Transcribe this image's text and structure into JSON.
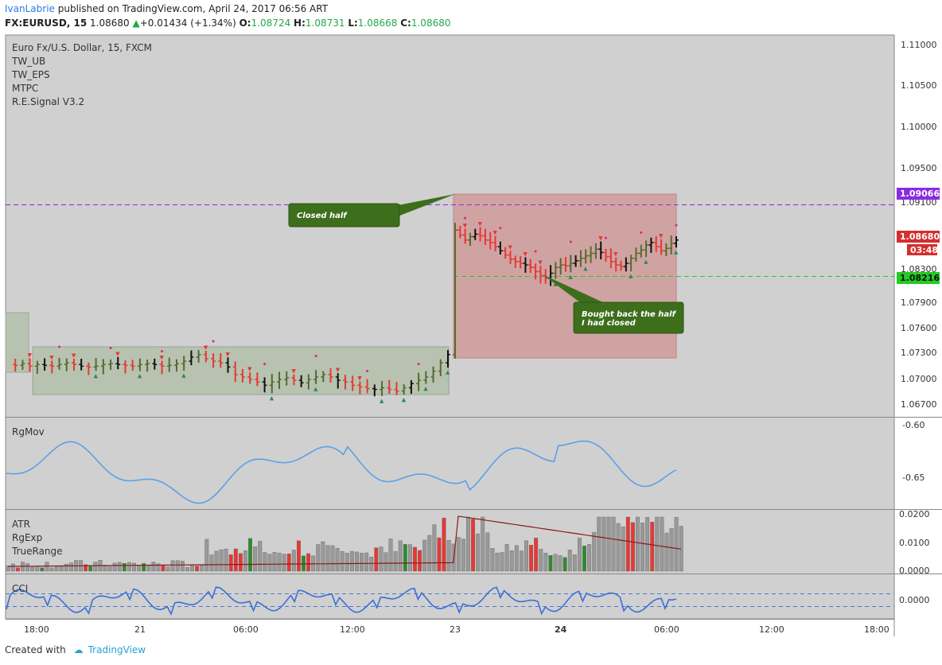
{
  "header": {
    "author": "IvanLabrie",
    "published": "published on TradingView.com, April 24, 2017 06:56 ART",
    "symbol": "FX:EURUSD, 15",
    "last": "1.08680",
    "change": "+0.01434 (+1.34%)",
    "o_label": "O:",
    "o": "1.08724",
    "h_label": "H:",
    "h": "1.08731",
    "l_label": "L:",
    "l": "1.08668",
    "c_label": "C:",
    "c": "1.08680"
  },
  "legend": {
    "instrument": "Euro Fx/U.S. Dollar, 15, FXCM",
    "studies": [
      "TW_UB",
      "TW_EPS",
      "MTPC",
      "R.E.Signal V3.2"
    ]
  },
  "annotations": {
    "closed_half": "Closed half",
    "bought_back_1": "Bought back the half",
    "bought_back_2": "I had closed"
  },
  "price_axis": {
    "ticks": [
      "1.11000",
      "1.10500",
      "1.10000",
      "1.09500",
      "1.09100",
      "1.08300",
      "1.07900",
      "1.07600",
      "1.07300",
      "1.07000",
      "1.06700"
    ],
    "purple_label": "1.09066",
    "red_label": "1.08680",
    "red_timer": "03:48",
    "green_label": "1.08216"
  },
  "panes": {
    "rgmov": "RgMov",
    "rgmov_ticks": [
      "-0.60",
      "-0.65"
    ],
    "atr": [
      "ATR",
      "RgExp",
      "TrueRange"
    ],
    "atr_ticks": [
      "0.0200",
      "0.0100",
      "0.0000"
    ],
    "cci": "CCI",
    "cci_ticks": [
      "0.0000"
    ]
  },
  "time_axis": [
    "18:00",
    "21",
    "06:00",
    "12:00",
    "23",
    "24",
    "06:00",
    "12:00",
    "18:00"
  ],
  "colors": {
    "bull": "#556b2f",
    "bear": "#e53935",
    "rgmov_line": "#5aa1e8",
    "cci_line": "#3a6fd8",
    "purple": "#8a2be2",
    "green_line": "#22cc22",
    "annot_fill": "#3d6e1c"
  },
  "chart_data": {
    "type": "candlestick",
    "symbol": "EURUSD",
    "interval": "15",
    "price_range": [
      1.0655,
      1.1115
    ],
    "last_price": 1.0868,
    "levels": [
      1.09066,
      1.08216
    ],
    "price_path": [
      1.0718,
      1.0717,
      1.0719,
      1.0716,
      1.0718,
      1.0717,
      1.0716,
      1.0718,
      1.072,
      1.0718,
      1.0716,
      1.0715,
      1.0716,
      1.0718,
      1.0719,
      1.0718,
      1.0717,
      1.0716,
      1.0718,
      1.0719,
      1.0718,
      1.0716,
      1.0717,
      1.0719,
      1.0722,
      1.0727,
      1.073,
      1.0725,
      1.0722,
      1.072,
      1.0715,
      1.0706,
      1.0703,
      1.07,
      1.0697,
      1.0693,
      1.0697,
      1.07,
      1.0702,
      1.0699,
      1.0696,
      1.07,
      1.0703,
      1.0706,
      1.0703,
      1.0699,
      1.0697,
      1.0693,
      1.0691,
      1.0689,
      1.0688,
      1.069,
      1.0688,
      1.0686,
      1.069,
      1.0695,
      1.0699,
      1.0703,
      1.071,
      1.072,
      1.073,
      1.088,
      1.0874,
      1.0868,
      1.0872,
      1.0875,
      1.0873,
      1.0868,
      1.0865,
      1.086,
      1.0855,
      1.085,
      1.0845,
      1.0842,
      1.084,
      1.0838,
      1.0835,
      1.083,
      1.0825,
      1.0822,
      1.0828,
      1.0835,
      1.0838,
      1.0837,
      1.084,
      1.0843,
      1.0846,
      1.0849,
      1.0852,
      1.0857,
      1.0853,
      1.0848,
      1.0842,
      1.0838,
      1.0836,
      1.084,
      1.0846,
      1.0852,
      1.0856,
      1.0862,
      1.0865,
      1.086,
      1.0855,
      1.0858,
      1.0864,
      1.0868
    ]
  }
}
